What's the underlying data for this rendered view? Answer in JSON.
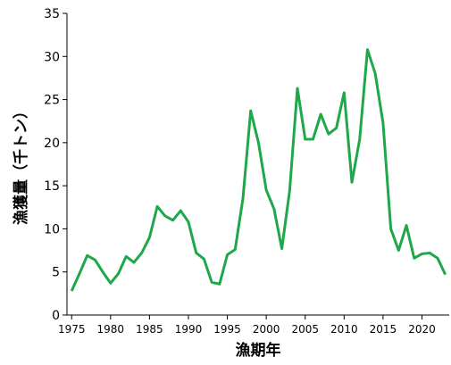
{
  "chart_data": {
    "type": "line",
    "x_label": "漁期年",
    "y_label": "漁獲量（千トン）",
    "x": [
      1975,
      1976,
      1977,
      1978,
      1979,
      1980,
      1981,
      1982,
      1983,
      1984,
      1985,
      1986,
      1987,
      1988,
      1989,
      1990,
      1991,
      1992,
      1993,
      1994,
      1995,
      1996,
      1997,
      1998,
      1999,
      2000,
      2001,
      2002,
      2003,
      2004,
      2005,
      2006,
      2007,
      2008,
      2009,
      2010,
      2011,
      2012,
      2013,
      2014,
      2015,
      2016,
      2017,
      2018,
      2019,
      2020,
      2021,
      2022,
      2023
    ],
    "values": [
      2.8,
      4.8,
      6.9,
      6.4,
      5.0,
      3.7,
      4.8,
      6.8,
      6.1,
      7.2,
      9.0,
      12.6,
      11.5,
      11.0,
      12.1,
      10.8,
      7.2,
      6.5,
      3.8,
      3.6,
      7.0,
      7.6,
      13.5,
      23.7,
      20.0,
      14.5,
      12.3,
      7.7,
      14.4,
      26.3,
      20.4,
      20.4,
      23.3,
      21.0,
      21.7,
      25.8,
      15.4,
      20.4,
      30.8,
      28.0,
      22.3,
      10.0,
      7.5,
      10.4,
      6.6,
      7.1,
      7.2,
      6.6,
      4.7
    ],
    "color": "#1ea84a",
    "xlim": [
      1974.4,
      2023.5
    ],
    "xticks": [
      1975,
      1980,
      1985,
      1990,
      1995,
      2000,
      2005,
      2010,
      2015,
      2020
    ],
    "ylim": [
      0,
      35
    ],
    "yticks": [
      0,
      5,
      10,
      15,
      20,
      25,
      30,
      35
    ]
  }
}
